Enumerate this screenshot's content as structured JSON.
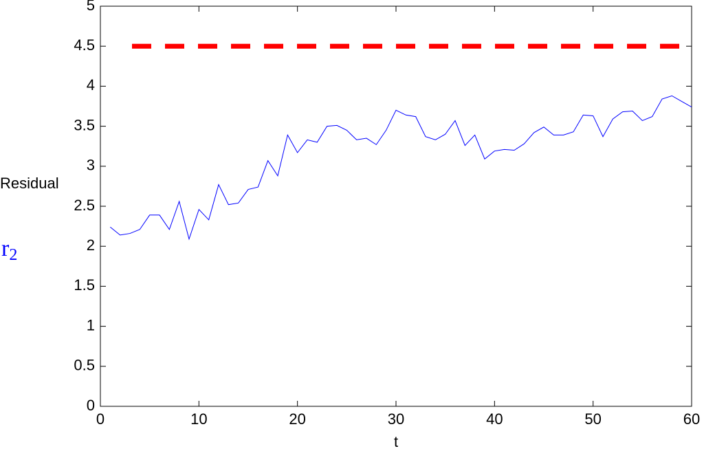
{
  "chart_data": {
    "type": "line",
    "x_label": "t",
    "y_label": "Residual",
    "y_symbol": "r",
    "y_symbol_subscript": "2",
    "x": [
      1,
      2,
      3,
      4,
      5,
      6,
      7,
      8,
      9,
      10,
      11,
      12,
      13,
      14,
      15,
      16,
      17,
      18,
      19,
      20,
      21,
      22,
      23,
      24,
      25,
      26,
      27,
      28,
      29,
      30,
      31,
      32,
      33,
      34,
      35,
      36,
      37,
      38,
      39,
      40,
      41,
      42,
      43,
      44,
      45,
      46,
      47,
      48,
      49,
      50,
      51,
      52,
      53,
      54,
      55,
      56,
      57,
      58,
      59,
      60
    ],
    "series": [
      {
        "color": "#0000ff",
        "values": [
          2.24,
          2.14,
          2.16,
          2.21,
          2.39,
          2.39,
          2.21,
          2.56,
          2.09,
          2.46,
          2.33,
          2.77,
          2.52,
          2.54,
          2.71,
          2.74,
          3.07,
          2.88,
          3.39,
          3.17,
          3.33,
          3.3,
          3.5,
          3.51,
          3.45,
          3.33,
          3.35,
          3.27,
          3.45,
          3.7,
          3.64,
          3.62,
          3.37,
          3.33,
          3.4,
          3.57,
          3.26,
          3.39,
          3.09,
          3.19,
          3.21,
          3.2,
          3.28,
          3.42,
          3.49,
          3.39,
          3.39,
          3.43,
          3.64,
          3.63,
          3.37,
          3.59,
          3.68,
          3.69,
          3.57,
          3.62,
          3.84,
          3.88,
          3.81,
          3.74
        ]
      }
    ],
    "threshold": 4.5,
    "threshold_color": "#ff0000",
    "xlim": [
      0,
      60
    ],
    "xticks": [
      0,
      10,
      20,
      30,
      40,
      50,
      60
    ],
    "ylim": [
      0,
      5
    ],
    "yticks": [
      0,
      0.5,
      1,
      1.5,
      2,
      2.5,
      3,
      3.5,
      4,
      4.5,
      5
    ]
  }
}
